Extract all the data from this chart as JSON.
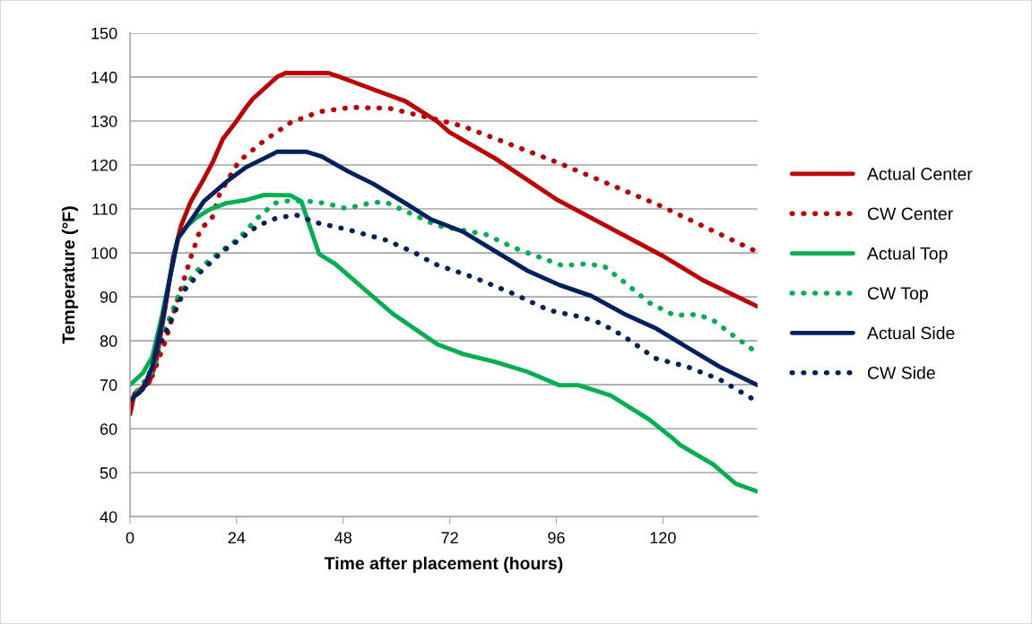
{
  "chart_data": {
    "type": "line",
    "xlabel": "Time after placement (hours)",
    "ylabel": "Temperature (°F)",
    "xlim": [
      0,
      141.3
    ],
    "xticks": [
      0,
      24,
      48,
      72,
      96,
      120
    ],
    "ylim": [
      40,
      150
    ],
    "yticks": [
      40,
      50,
      60,
      70,
      80,
      90,
      100,
      110,
      120,
      130,
      140,
      150
    ],
    "grid": "y",
    "legend": "right",
    "marker": "none",
    "series": [
      {
        "name": "Actual Center",
        "color": "#c00000",
        "line_style": "solid",
        "x": [
          0,
          1,
          4.3,
          5.8,
          7.9,
          9.7,
          11.5,
          13.7,
          16.6,
          18.7,
          20.9,
          24,
          26,
          27.6,
          33.2,
          35,
          44.7,
          47.6,
          54.8,
          62,
          69.2,
          72,
          82.2,
          96.3,
          120,
          129,
          141.3
        ],
        "values": [
          63.3,
          68,
          70.5,
          74.9,
          87.3,
          99,
          106.2,
          111.7,
          116.8,
          120.8,
          125.9,
          130,
          132.9,
          135,
          140.1,
          140.9,
          140.9,
          139.9,
          137.2,
          134.5,
          129.9,
          127.4,
          121.5,
          112,
          99.3,
          93.8,
          87.8
        ]
      },
      {
        "name": "CW Center",
        "color": "#c00000",
        "line_style": "dotted",
        "x": [
          0,
          5,
          8,
          10,
          11.5,
          13.7,
          15.9,
          18.4,
          20.2,
          24.5,
          30.3,
          36.1,
          42.6,
          49.8,
          58.4,
          69.2,
          75,
          96.7,
          119.7,
          141.3
        ],
        "values": [
          66,
          72,
          80,
          87,
          91.8,
          99,
          105.5,
          107.7,
          113.5,
          120.8,
          125.6,
          129.6,
          132.1,
          133.1,
          132.9,
          130.3,
          128.8,
          120.4,
          110.6,
          100.2
        ]
      },
      {
        "name": "Actual Top",
        "color": "#00b050",
        "line_style": "solid",
        "x": [
          0,
          2.9,
          5,
          7.2,
          9,
          10.8,
          12.9,
          14.9,
          18,
          21.6,
          26,
          30.3,
          36.1,
          38.6,
          40.4,
          42.6,
          46.2,
          59.1,
          69.2,
          75,
          82.2,
          89.4,
          96.7,
          101,
          108.2,
          116.9,
          121.9,
          123.9,
          131.3,
          136.4,
          141.3
        ],
        "values": [
          70,
          72.7,
          76.3,
          85.8,
          94.5,
          103.3,
          106.2,
          108,
          109.9,
          111.3,
          112,
          113.2,
          113.1,
          111.7,
          106.2,
          99.7,
          97.5,
          86.2,
          79.2,
          77,
          75.2,
          73,
          69.9,
          69.9,
          67.6,
          62.1,
          58.1,
          56.3,
          51.9,
          47.5,
          45.7
        ]
      },
      {
        "name": "CW Top",
        "color": "#00b050",
        "line_style": "dotted",
        "x": [
          0,
          5,
          8,
          10.8,
          14.8,
          18.7,
          24.5,
          28.8,
          32.5,
          35.4,
          39.7,
          43.9,
          48.7,
          54.8,
          57.7,
          62,
          69.2,
          80.1,
          86.6,
          97.4,
          102.4,
          106.7,
          111.1,
          116.9,
          122.6,
          127.7,
          131.3,
          135.6,
          141.3
        ],
        "values": [
          66.5,
          73,
          83,
          90,
          95.7,
          99,
          103.3,
          108,
          111.3,
          111.8,
          111.8,
          111.3,
          110.1,
          111.5,
          111.5,
          109.5,
          106.2,
          104.2,
          101.1,
          97.1,
          97.5,
          97,
          93.5,
          88.7,
          85.8,
          86,
          84.7,
          81.4,
          77.2
        ]
      },
      {
        "name": "Actual Side",
        "color": "#002060",
        "line_style": "solid",
        "x": [
          0,
          2.9,
          5,
          7.2,
          9,
          10.8,
          14.4,
          16.6,
          22,
          26,
          31,
          33.1,
          39.7,
          43.2,
          49,
          54.8,
          62,
          67.8,
          75,
          82.2,
          89.4,
          96.7,
          103.9,
          111.1,
          118.3,
          125.5,
          132.8,
          141.3
        ],
        "values": [
          66.5,
          69,
          74.1,
          84.3,
          94.5,
          103.3,
          108.4,
          111.7,
          116.4,
          119.4,
          121.9,
          123,
          123,
          121.9,
          118.6,
          115.7,
          111.3,
          107.6,
          104.8,
          100.4,
          96,
          92.7,
          90.2,
          86.2,
          82.9,
          78.5,
          74.1,
          69.9
        ]
      },
      {
        "name": "CW Side",
        "color": "#002060",
        "line_style": "dotted",
        "x": [
          0,
          3,
          6.5,
          9.4,
          12.3,
          15.9,
          20.9,
          24.5,
          28.8,
          33.2,
          37.5,
          41.8,
          49,
          57.7,
          64.2,
          68.5,
          77.2,
          85.9,
          94.5,
          101.7,
          106,
          111.1,
          118.3,
          125.5,
          132.8,
          140.7
        ],
        "values": [
          66.5,
          69,
          78.5,
          85,
          91.6,
          95.7,
          100.4,
          102.9,
          106.2,
          108,
          108.6,
          106.9,
          105.3,
          102.9,
          100,
          97.5,
          94.5,
          90.9,
          86.9,
          85.4,
          84,
          81.1,
          76,
          74.1,
          71.2,
          66.5
        ]
      }
    ]
  }
}
